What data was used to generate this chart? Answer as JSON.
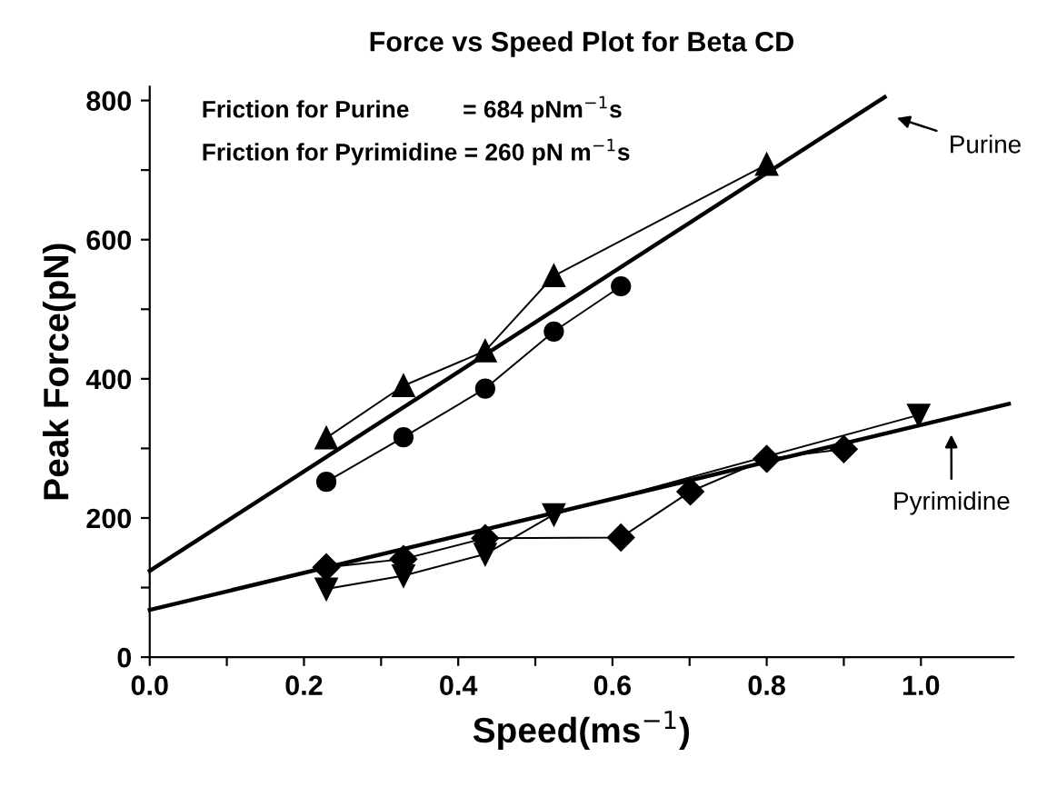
{
  "chart_data": {
    "type": "line",
    "title": "Force vs Speed Plot for Beta CD",
    "xlabel": "Speed(ms$^{−1}$)",
    "ylabel": "Peak Force(pN)",
    "xlim": [
      0,
      1.12
    ],
    "ylim": [
      0,
      820
    ],
    "xticks": [
      {
        "value": 0.0,
        "label": "0.0"
      },
      {
        "value": 0.1,
        "label": null
      },
      {
        "value": 0.2,
        "label": "0.2"
      },
      {
        "value": 0.3,
        "label": null
      },
      {
        "value": 0.4,
        "label": "0.4"
      },
      {
        "value": 0.5,
        "label": null
      },
      {
        "value": 0.6,
        "label": "0.6"
      },
      {
        "value": 0.7,
        "label": null
      },
      {
        "value": 0.8,
        "label": "0.8"
      },
      {
        "value": 0.9,
        "label": null
      },
      {
        "value": 1.0,
        "label": "1.0"
      }
    ],
    "yticks": [
      0,
      {
        "value": 100,
        "label": null
      },
      200,
      {
        "value": 300,
        "label": null
      },
      400,
      {
        "value": 500,
        "label": null
      },
      600,
      {
        "value": 700,
        "label": null
      },
      800
    ],
    "grid": false,
    "legend": false,
    "series": [
      {
        "marker": "triangle",
        "color": "#000000",
        "x": [
          0.229,
          0.329,
          0.435,
          0.524,
          0.8
        ],
        "values": [
          315,
          390,
          440,
          548,
          708
        ]
      },
      {
        "marker": "circle",
        "color": "#000000",
        "x": [
          0.229,
          0.329,
          0.435,
          0.524,
          0.611
        ],
        "values": [
          252,
          316,
          386,
          468,
          533
        ]
      },
      {
        "marker": "diamond",
        "color": "#000000",
        "x": [
          0.229,
          0.329,
          0.435,
          0.611,
          0.701,
          0.8,
          0.9
        ],
        "values": [
          129,
          141,
          171,
          172,
          238,
          285,
          299
        ]
      },
      {
        "marker": "triangle_down",
        "color": "#000000",
        "x": [
          0.229,
          0.329,
          0.435,
          0.524,
          0.997
        ],
        "values": [
          98,
          117,
          148,
          205,
          348
        ]
      },
      {
        "marker": "none",
        "color": "#000000",
        "x": [
          0,
          0.953
        ],
        "values": [
          124,
          805
        ]
      },
      {
        "marker": "none",
        "color": "#000000",
        "x": [
          0,
          1.114
        ],
        "values": [
          68,
          364
        ]
      }
    ],
    "annotations": [
      "Friction for Purine        = 684 pNm$^{−1}$s",
      "Friction for Pyrimidine = 260 pN m$^{−1}$s",
      "Purine",
      "Pyrimidine"
    ]
  }
}
